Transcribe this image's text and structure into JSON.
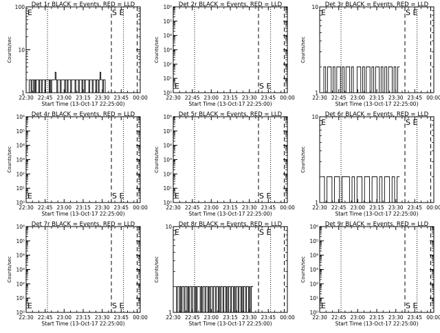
{
  "chart_data": [
    {
      "type": "line",
      "title": "Det 1r BLACK = Events, RED = LLD",
      "xlabel": "Start Time (13-Oct-17 22:25:00)",
      "ylabel": "Counts/sec",
      "y_scale": "log",
      "x_tick_labels": [
        "22:30",
        "22:45",
        "23:00",
        "23:15",
        "23:30",
        "23:45",
        "00:00"
      ],
      "y_tick_labels": [
        "1",
        "10",
        "100"
      ],
      "markers": {
        "left": "E",
        "right": "S E"
      },
      "series": [
        {
          "values": [
            1,
            2,
            2,
            1,
            2,
            2,
            1,
            2,
            1,
            2,
            2,
            2,
            1,
            2,
            2,
            1,
            2,
            2,
            2,
            1,
            2,
            2,
            2,
            2,
            1,
            2,
            1,
            2,
            2,
            2,
            2,
            3,
            2,
            1,
            2,
            2,
            2,
            1,
            2,
            2,
            2,
            2,
            1,
            2,
            2,
            1,
            2,
            2,
            2,
            1,
            2,
            2,
            2,
            2,
            1,
            2,
            2,
            2,
            1,
            2,
            2,
            2,
            1,
            2,
            2,
            1,
            2,
            2,
            2,
            2,
            1,
            2,
            2,
            2,
            1,
            2,
            2,
            2,
            1,
            2,
            2,
            1,
            2,
            3,
            2,
            2,
            1,
            2,
            2,
            1
          ]
        }
      ]
    },
    {
      "type": "line",
      "title": "Det 2r BLACK = Events, RED = LLD",
      "xlabel": "Start Time (13-Oct-17 22:25:00)",
      "ylabel": "Counts/sec",
      "y_scale": "log",
      "x_tick_labels": [
        "22:30",
        "22:45",
        "23:00",
        "23:15",
        "23:30",
        "23:45",
        "00:00"
      ],
      "y_tick_labels": [
        "10⁰",
        "10¹",
        "10²",
        "10³",
        "10⁴",
        "10⁵",
        "10⁶"
      ],
      "markers": {
        "left": "E",
        "right": "S E"
      },
      "series": [
        {
          "values": []
        }
      ]
    },
    {
      "type": "line",
      "title": "Det 3r BLACK = Events, RED = LLD",
      "xlabel": "Start Time (13-Oct-17 22:25:00)",
      "ylabel": "Counts/sec",
      "y_scale": "log",
      "x_tick_labels": [
        "22:30",
        "22:45",
        "23:00",
        "23:15",
        "23:30",
        "23:45",
        "00:00"
      ],
      "y_tick_labels": [
        "1",
        "10"
      ],
      "markers": {
        "left": "E",
        "right": "S E"
      },
      "series": [
        {
          "values": [
            1,
            2,
            1,
            2,
            2,
            1,
            2,
            1,
            2,
            2,
            1,
            2,
            1,
            2,
            2,
            1,
            2,
            1,
            1,
            2,
            2,
            1,
            2,
            1,
            2,
            2,
            1,
            2,
            1,
            2,
            2,
            1,
            2,
            1,
            2,
            1,
            2,
            2,
            1,
            2,
            1,
            2
          ]
        }
      ]
    },
    {
      "type": "line",
      "title": "Det 4r BLACK = Events, RED = LLD",
      "xlabel": "Start Time (13-Oct-17 22:25:00)",
      "ylabel": "Counts/sec",
      "y_scale": "log",
      "x_tick_labels": [
        "22:30",
        "22:45",
        "23:00",
        "23:15",
        "23:30",
        "23:45",
        "00:00"
      ],
      "y_tick_labels": [
        "10⁰",
        "10¹",
        "10²",
        "10³",
        "10⁴",
        "10⁵",
        "10⁶"
      ],
      "markers": {
        "left": "E",
        "right": "S E"
      },
      "series": [
        {
          "values": []
        }
      ]
    },
    {
      "type": "line",
      "title": "Det 5r BLACK = Events, RED = LLD",
      "xlabel": "Start Time (13-Oct-17 22:25:00)",
      "ylabel": "Counts/sec",
      "y_scale": "log",
      "x_tick_labels": [
        "22:30",
        "22:45",
        "23:00",
        "23:15",
        "23:30",
        "23:45",
        "00:00"
      ],
      "y_tick_labels": [
        "10⁰",
        "10¹",
        "10²",
        "10³",
        "10⁴",
        "10⁵",
        "10⁶"
      ],
      "markers": {
        "left": "E",
        "right": "S E"
      },
      "series": [
        {
          "values": []
        }
      ]
    },
    {
      "type": "line",
      "title": "Det 6r BLACK = Events, RED = LLD",
      "xlabel": "Start Time (13-Oct-17 22:25:00)",
      "ylabel": "Counts/sec",
      "y_scale": "log",
      "x_tick_labels": [
        "22:30",
        "22:45",
        "23:00",
        "23:15",
        "23:30",
        "23:45",
        "00:00"
      ],
      "y_tick_labels": [
        "1",
        "10"
      ],
      "markers": {
        "left": "E",
        "right": "S E"
      },
      "series": [
        {
          "values": [
            2,
            1,
            2,
            2,
            1,
            2,
            2,
            1,
            2,
            2,
            2,
            1,
            2,
            1,
            2,
            2,
            1,
            2,
            2,
            1,
            2,
            2,
            1,
            2,
            1,
            2,
            2,
            1,
            2,
            1,
            2
          ]
        }
      ]
    },
    {
      "type": "line",
      "title": "Det 7r BLACK = Events, RED = LLD",
      "xlabel": "Start Time (13-Oct-17 22:25:00)",
      "ylabel": "Counts/sec",
      "y_scale": "log",
      "x_tick_labels": [
        "22:30",
        "22:45",
        "23:00",
        "23:15",
        "23:30",
        "23:45",
        "00:00"
      ],
      "y_tick_labels": [
        "10⁰",
        "10¹",
        "10²",
        "10³",
        "10⁴",
        "10⁵",
        "10⁶"
      ],
      "markers": {
        "left": "E",
        "right": "S E"
      },
      "series": [
        {
          "values": []
        }
      ]
    },
    {
      "type": "line",
      "title": "Det 8r BLACK = Events, RED = LLD",
      "xlabel": "Start Time (13-Oct-17 22:25:00)",
      "ylabel": "Counts/sec",
      "y_scale": "log",
      "x_tick_labels": [
        "22:30",
        "22:45",
        "23:00",
        "23:15",
        "23:30",
        "23:45",
        "00:00"
      ],
      "y_tick_labels": [
        "1",
        "10"
      ],
      "markers": {
        "left": "E",
        "right": "S E"
      },
      "series": [
        {
          "values": [
            2,
            1,
            2,
            2,
            1,
            2,
            1,
            2,
            2,
            1,
            2,
            2,
            1,
            2,
            1,
            2,
            2,
            1,
            2,
            2,
            1,
            2,
            1,
            2,
            2,
            2,
            1,
            2,
            1,
            2,
            2,
            1,
            2,
            2,
            1,
            2,
            1,
            2,
            2,
            1,
            2,
            2,
            1,
            2,
            2,
            1,
            2,
            1,
            2,
            2,
            1,
            2,
            2,
            1,
            2,
            1,
            2,
            2,
            1,
            2,
            2,
            1,
            2,
            1,
            2,
            2,
            1,
            2,
            2,
            1,
            2,
            1,
            2,
            2,
            1,
            2,
            2,
            1,
            2,
            1,
            2,
            2
          ]
        }
      ]
    },
    {
      "type": "line",
      "title": "Det 9r BLACK = Events, RED = LLD",
      "xlabel": "Start Time (13-Oct-17 22:25:00)",
      "ylabel": "Counts/sec",
      "y_scale": "log",
      "x_tick_labels": [
        "22:30",
        "22:45",
        "23:00",
        "23:15",
        "23:30",
        "23:45",
        "00:00"
      ],
      "y_tick_labels": [
        "10⁰",
        "10¹",
        "10²",
        "10³",
        "10⁴",
        "10⁵",
        "10⁶"
      ],
      "markers": {
        "left": "E",
        "right": "S E"
      },
      "series": [
        {
          "values": []
        }
      ]
    }
  ]
}
